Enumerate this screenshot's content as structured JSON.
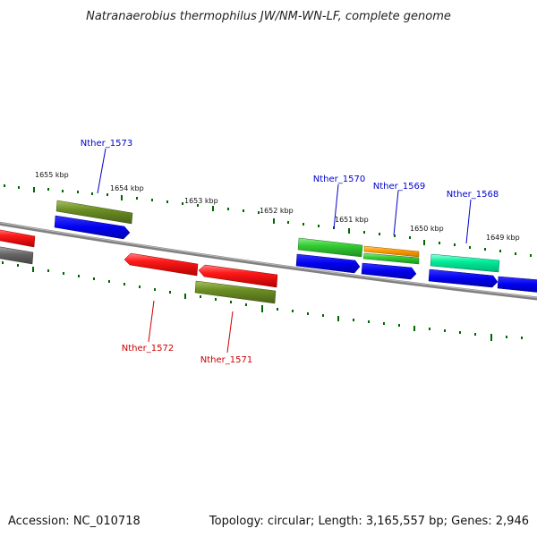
{
  "title": "Natranaerobius thermophilus JW/NM-WN-LF, complete genome",
  "accession": "Accession: NC_010718",
  "topology": "Topology: circular; Length: 3,165,557 bp; Genes: 2,946",
  "scale_labels": [
    "1655 kbp",
    "1654 kbp",
    "1653 kbp",
    "1652 kbp",
    "1651 kbp",
    "1650 kbp",
    "1649 kbp"
  ],
  "gene_labels": {
    "nther_1573": "Nther_1573",
    "nther_1572": "Nther_1572",
    "nther_1571": "Nther_1571",
    "nther_1570": "Nther_1570",
    "nther_1569": "Nther_1569",
    "nther_1568": "Nther_1568"
  },
  "colors": {
    "forward_label": "#0000cc",
    "reverse_label": "#cc0000",
    "cds_blue": "#0000ee",
    "gene_red": "#ee0000",
    "gene_olive": "#6b8e23",
    "gene_green": "#33cc33",
    "gene_orange": "#ff9900",
    "gene_teal": "#00ee99",
    "gene_gray": "#666666",
    "tick_green": "#006600",
    "backbone": "#808080"
  }
}
